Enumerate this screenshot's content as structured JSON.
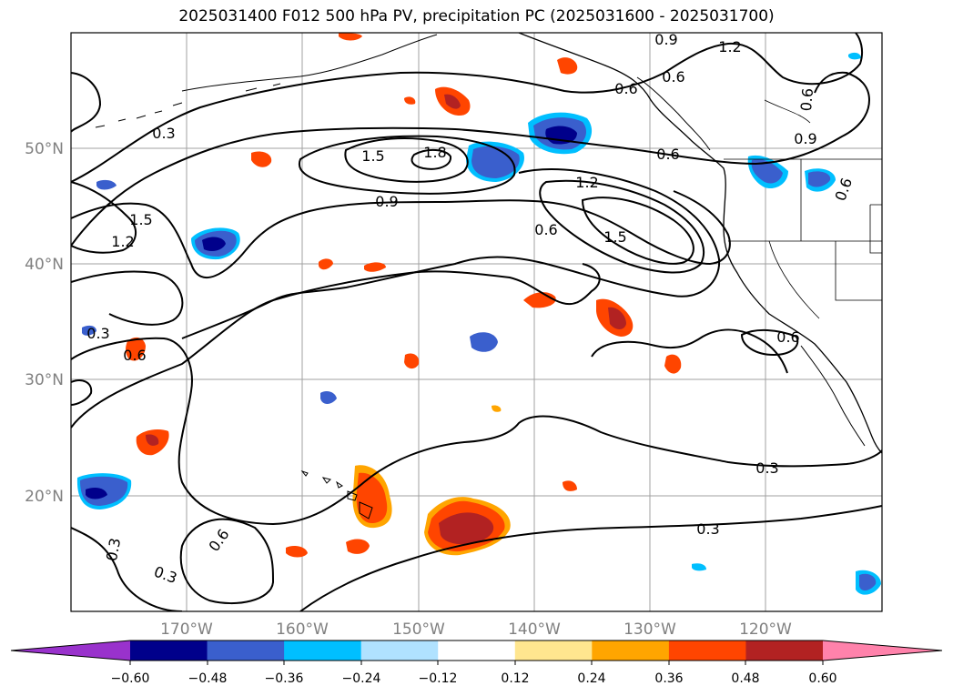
{
  "title": "2025031400 F012 500 hPa PV, precipitation PC (2025031600 - 2025031700)",
  "map": {
    "lat_labels": [
      "50°N",
      "40°N",
      "30°N",
      "20°N"
    ],
    "lon_labels": [
      "170°W",
      "160°W",
      "150°W",
      "140°W",
      "130°W",
      "120°W"
    ],
    "contour_labels": [
      "0.3",
      "0.6",
      "0.9",
      "1.2",
      "1.5",
      "1.8"
    ],
    "colors": {
      "coast": "#000000",
      "grid": "#a0a0a0"
    }
  },
  "colorbar": {
    "ticks": [
      "−0.60",
      "−0.48",
      "−0.36",
      "−0.24",
      "−0.12",
      "0.12",
      "0.24",
      "0.36",
      "0.48",
      "0.60"
    ],
    "colors": [
      "#9932cc",
      "#00008b",
      "#3a5fcd",
      "#00bfff",
      "#b0e2ff",
      "#ffffff",
      "#ffe68f",
      "#ffa500",
      "#ff4500",
      "#b22222",
      "#ff82ab"
    ]
  }
}
